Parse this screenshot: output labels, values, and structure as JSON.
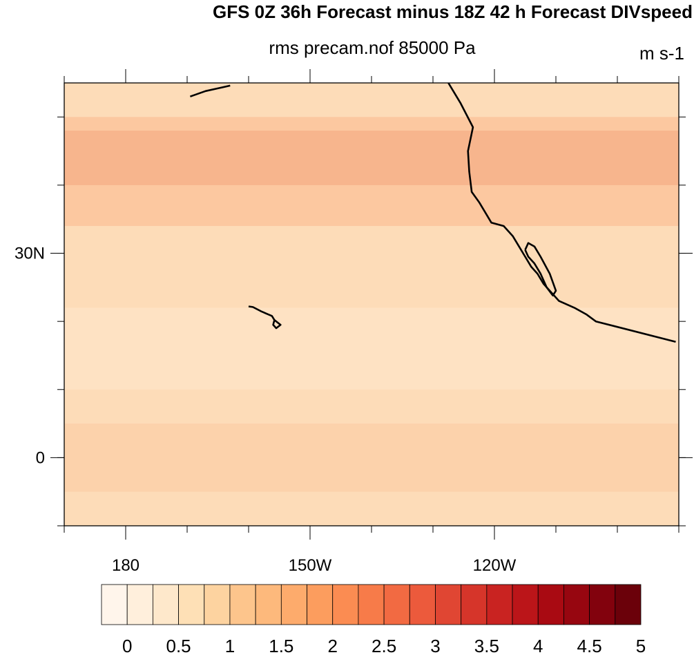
{
  "title": "GFS 0Z 36h Forecast minus 18Z 42 h Forecast DIVspeed",
  "subtitle": "rms precam.nof 85000 Pa",
  "units": "m s-1",
  "axes": {
    "lon_range": [
      170,
      -90
    ],
    "lat_range": [
      -10,
      55
    ],
    "x_ticks": [
      {
        "lon": 180,
        "label": "180"
      },
      {
        "lon": -150,
        "label": "150W"
      },
      {
        "lon": -120,
        "label": "120W"
      }
    ],
    "y_ticks": [
      {
        "lat": 30,
        "label": "30N"
      },
      {
        "lat": 0,
        "label": "0"
      }
    ]
  },
  "colorbar": {
    "levels": [
      0,
      0.25,
      0.5,
      0.75,
      1,
      1.25,
      1.5,
      1.75,
      2,
      2.25,
      2.5,
      2.75,
      3,
      3.25,
      3.5,
      3.75,
      4,
      4.25,
      4.5,
      4.75,
      5
    ],
    "labels": [
      "0",
      "0.5",
      "1",
      "1.5",
      "2",
      "2.5",
      "3",
      "3.5",
      "4",
      "4.5",
      "5"
    ],
    "colors": [
      "#fff5eb",
      "#ffefdc",
      "#fee8cb",
      "#fee0b6",
      "#fdd3a0",
      "#fdc58c",
      "#fdb97c",
      "#fdab6c",
      "#fc9d5e",
      "#fb8c52",
      "#f77b49",
      "#f26a42",
      "#ec5a3c",
      "#e04633",
      "#d6352a",
      "#c92321",
      "#bb1519",
      "#a90a12",
      "#970610",
      "#82020d",
      "#6b010a"
    ]
  },
  "map_field": {
    "background_color": "#fddcb8",
    "regions": [
      {
        "kind": "band",
        "lat": [
          34,
          50
        ],
        "color": "#fbc49b"
      },
      {
        "kind": "band",
        "lat": [
          40,
          48
        ],
        "color": "#f6b28a"
      },
      {
        "kind": "band",
        "lat": [
          -5,
          5
        ],
        "color": "#fcd0a8"
      },
      {
        "kind": "band",
        "lat": [
          10,
          22
        ],
        "color": "#fee3c4"
      }
    ]
  },
  "coastlines": {
    "north_america": [
      [
        -127.5,
        55
      ],
      [
        -125.5,
        52
      ],
      [
        -123.5,
        48.5
      ],
      [
        -124.3,
        45
      ],
      [
        -124.1,
        42
      ],
      [
        -123.7,
        39
      ],
      [
        -122.5,
        37.5
      ],
      [
        -121.5,
        36
      ],
      [
        -120.5,
        34.5
      ],
      [
        -118.5,
        34
      ],
      [
        -117,
        32.5
      ],
      [
        -116,
        31
      ],
      [
        -115,
        29.5
      ],
      [
        -114,
        28
      ],
      [
        -113,
        27
      ],
      [
        -112,
        25.5
      ],
      [
        -110.5,
        24
      ],
      [
        -109.5,
        23
      ],
      [
        -107,
        22
      ],
      [
        -105,
        21
      ],
      [
        -103.5,
        20
      ],
      [
        -90.5,
        17
      ]
    ],
    "baja_peninsula": [
      [
        -115,
        30.5
      ],
      [
        -114.5,
        31.5
      ],
      [
        -113.5,
        31
      ],
      [
        -112.5,
        29.5
      ],
      [
        -111,
        27
      ],
      [
        -110,
        24.5
      ],
      [
        -110.5,
        23.8
      ],
      [
        -111.5,
        25
      ],
      [
        -112.5,
        27
      ],
      [
        -113.5,
        28.5
      ],
      [
        -114.5,
        29.5
      ],
      [
        -115,
        30.5
      ]
    ],
    "hawaii": [
      [
        -160,
        22.2
      ],
      [
        -159.3,
        22.1
      ],
      [
        -158,
        21.5
      ],
      [
        -157,
        21.1
      ],
      [
        -156.2,
        20.8
      ],
      [
        -155.8,
        20.2
      ],
      [
        -154.8,
        19.5
      ],
      [
        -155.5,
        19
      ],
      [
        -156,
        19.5
      ],
      [
        -155.8,
        20.2
      ]
    ],
    "aleutians": [
      [
        -163,
        54.6
      ],
      [
        -165,
        54.2
      ],
      [
        -167,
        53.8
      ],
      [
        -169.5,
        53
      ]
    ]
  }
}
